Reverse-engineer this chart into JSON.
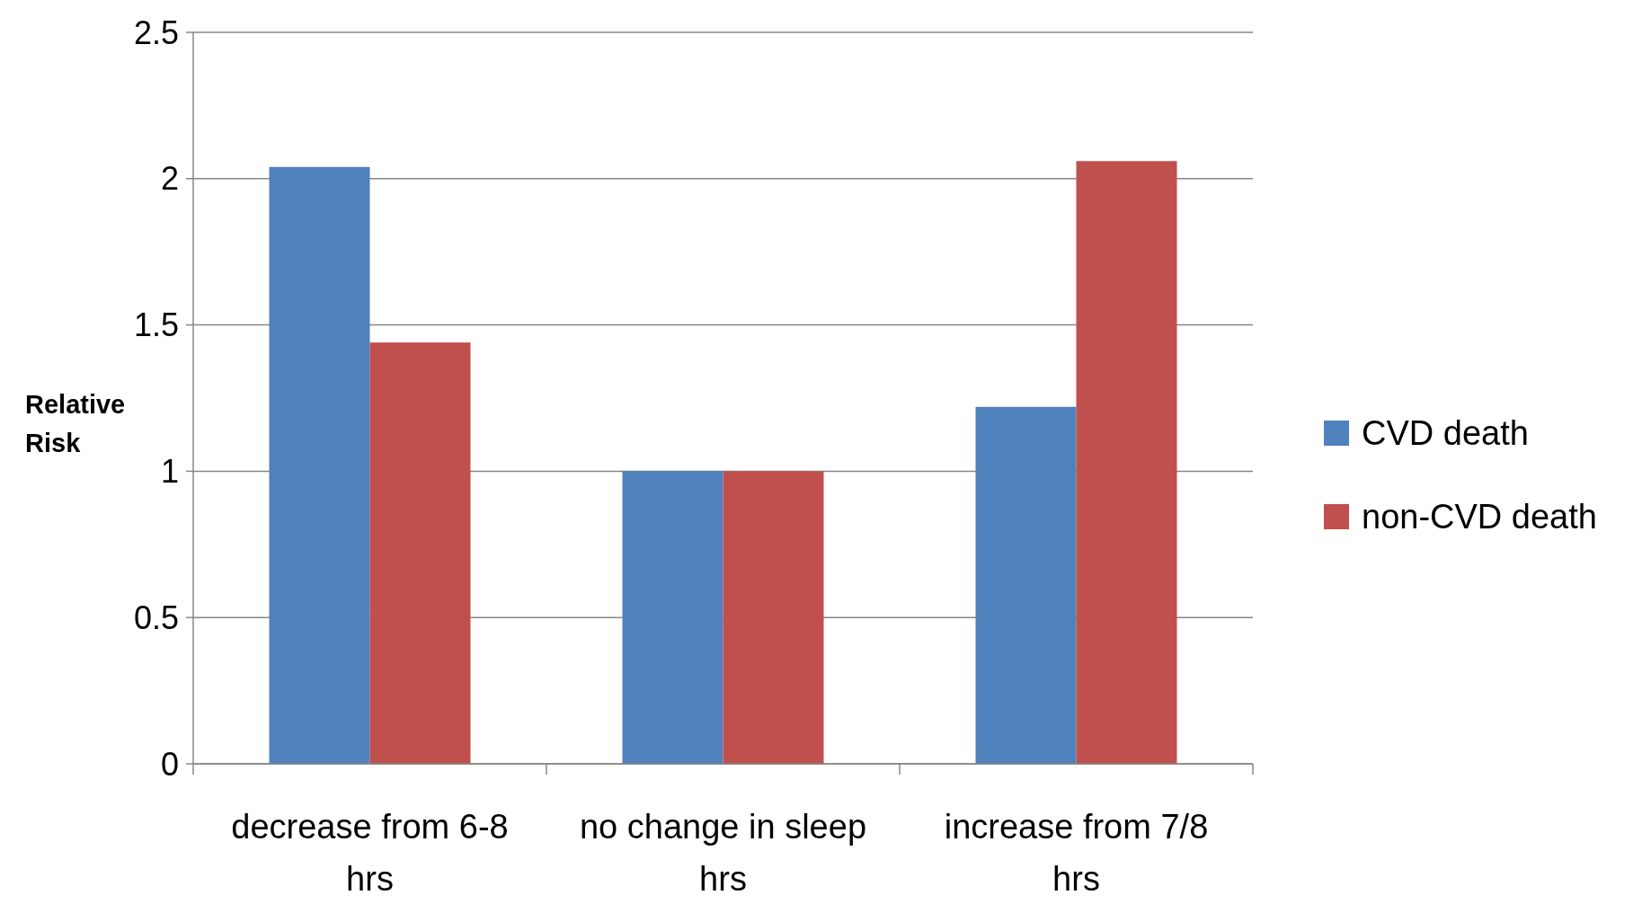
{
  "chart_data": {
    "type": "bar",
    "ylabel": "Relative Risk",
    "categories": [
      "decrease from 6-8 hrs",
      "no change in sleep hrs",
      "increase from 7/8 hrs"
    ],
    "series": [
      {
        "name": "CVD death",
        "color": "#4f81bd",
        "values": [
          2.04,
          1,
          1.22
        ]
      },
      {
        "name": "non-CVD death",
        "color": "#c0504d",
        "values": [
          1.44,
          1,
          2.06
        ]
      }
    ],
    "ylim": [
      0,
      2.5
    ],
    "yticks": [
      0,
      0.5,
      1,
      1.5,
      2,
      2.5
    ],
    "grid": "y",
    "legend": "right"
  }
}
